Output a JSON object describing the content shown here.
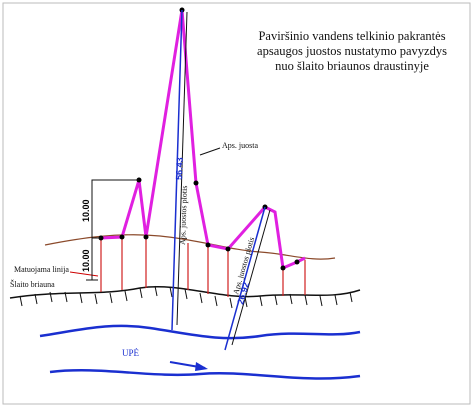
{
  "title": [
    "Paviršinio vandens telkinio pakrantės",
    "apsaugos juostos nustatymo pavyzdys",
    "nuo šlaito briaunos draustinyje"
  ],
  "labels": {
    "buffer_zone": "Aps. juosta",
    "width_label_1": "56.43",
    "width_text_1": "Aps. juostos plotis",
    "width_label_2": "26.92",
    "width_text_2": "Aps. juostos plotis",
    "dim_top": "10.00",
    "dim_bottom": "10.00",
    "measure_line": "Matuojama linija",
    "slope_edge": "Šlaito briauna",
    "river": "UPĖ"
  }
}
